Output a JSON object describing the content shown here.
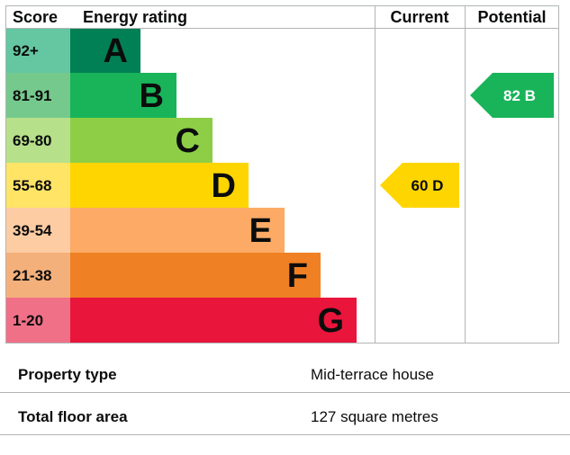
{
  "chart_data": {
    "type": "bar",
    "headers": {
      "score": "Score",
      "rating": "Energy rating",
      "current": "Current",
      "potential": "Potential"
    },
    "bands": [
      {
        "letter": "A",
        "range": "92+",
        "color": "#008054",
        "score_color": "#64c7a1"
      },
      {
        "letter": "B",
        "range": "81-91",
        "color": "#19b459",
        "score_color": "#75c98c"
      },
      {
        "letter": "C",
        "range": "69-80",
        "color": "#8dce46",
        "score_color": "#b6e08a"
      },
      {
        "letter": "D",
        "range": "55-68",
        "color": "#ffd500",
        "score_color": "#ffe466"
      },
      {
        "letter": "E",
        "range": "39-54",
        "color": "#fcaa65",
        "score_color": "#fdcca3"
      },
      {
        "letter": "F",
        "range": "21-38",
        "color": "#ef8023",
        "score_color": "#f4b07b"
      },
      {
        "letter": "G",
        "range": "1-20",
        "color": "#e9153b",
        "score_color": "#f07088"
      }
    ],
    "current": {
      "value": 60,
      "letter": "D",
      "label": "60  D"
    },
    "potential": {
      "value": 82,
      "letter": "B",
      "label": "82  B"
    }
  },
  "property": [
    {
      "label": "Property type",
      "value": "Mid-terrace house"
    },
    {
      "label": "Total floor area",
      "value": "127 square metres"
    }
  ]
}
